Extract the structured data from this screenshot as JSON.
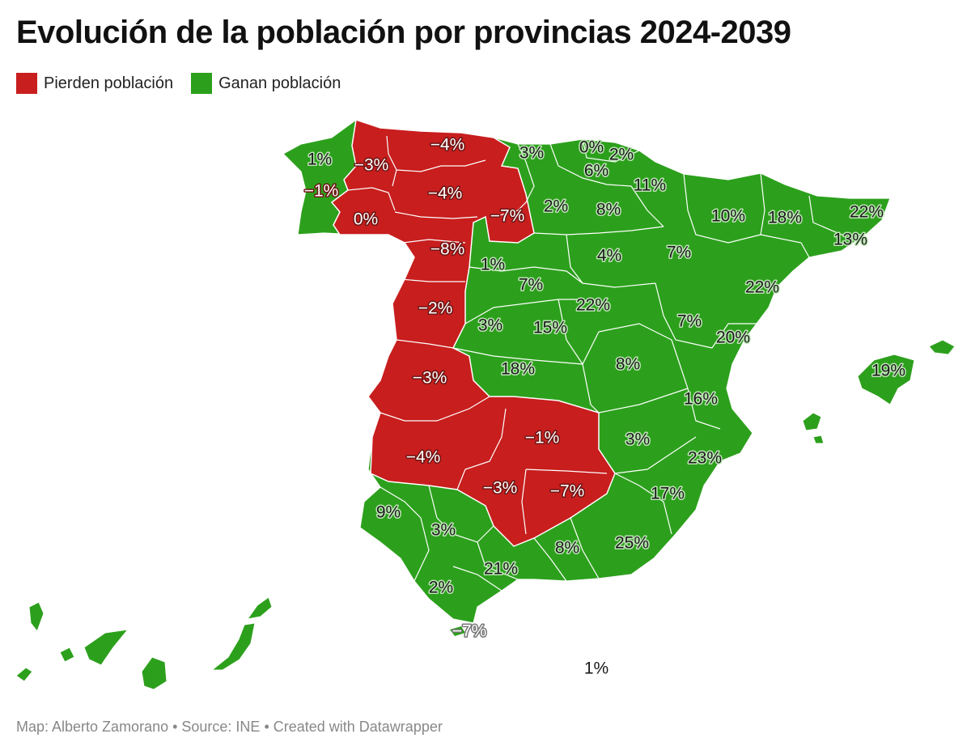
{
  "header": {
    "title": "Evolución de la población por provincias 2024-2039"
  },
  "legend": [
    {
      "label": "Pierden población",
      "color": "#c81e1e",
      "key": "loss"
    },
    {
      "label": "Ganan población",
      "color": "#2ca01c",
      "key": "gain"
    }
  ],
  "colors": {
    "loss": "#c81e1e",
    "gain": "#2ca01c",
    "border": "#ffffff"
  },
  "labels": {
    "coruna": "1%",
    "lugo": "−3%",
    "asturias": "−4%",
    "cantabria": "3%",
    "vizcaya": "0%",
    "guipuzcoa": "2%",
    "alava": "6%",
    "navarra": "11%",
    "huesca": "10%",
    "lleida": "18%",
    "girona": "22%",
    "barcelona": "13%",
    "pontevedra": "−1%",
    "ourense": "0%",
    "leon": "−4%",
    "palencia": "−7%",
    "burgos": "2%",
    "larioja": "8%",
    "zaragoza": "7%",
    "soria": "4%",
    "zamora": "−8%",
    "valladolid": "1%",
    "segovia": "7%",
    "guadalajara": "22%",
    "teruel": "7%",
    "tarragona": "22%",
    "castellon": "20%",
    "salamanca": "−2%",
    "avila": "3%",
    "madrid": "15%",
    "toledo": "18%",
    "cuenca": "8%",
    "valencia": "16%",
    "caceres": "−3%",
    "badajoz": "−4%",
    "ciudadreal": "−1%",
    "albacete": "3%",
    "alicante": "23%",
    "murcia": "17%",
    "cordoba": "−3%",
    "jaen": "−7%",
    "huelva": "9%",
    "sevilla": "3%",
    "granada": "8%",
    "almeria": "25%",
    "malaga": "21%",
    "cadiz": "2%",
    "ceuta": "−7%",
    "baleares": "19%",
    "canarias": "1%"
  },
  "footer": {
    "text": "Map: Alberto Zamorano • Source: INE • Created with Datawrapper"
  }
}
